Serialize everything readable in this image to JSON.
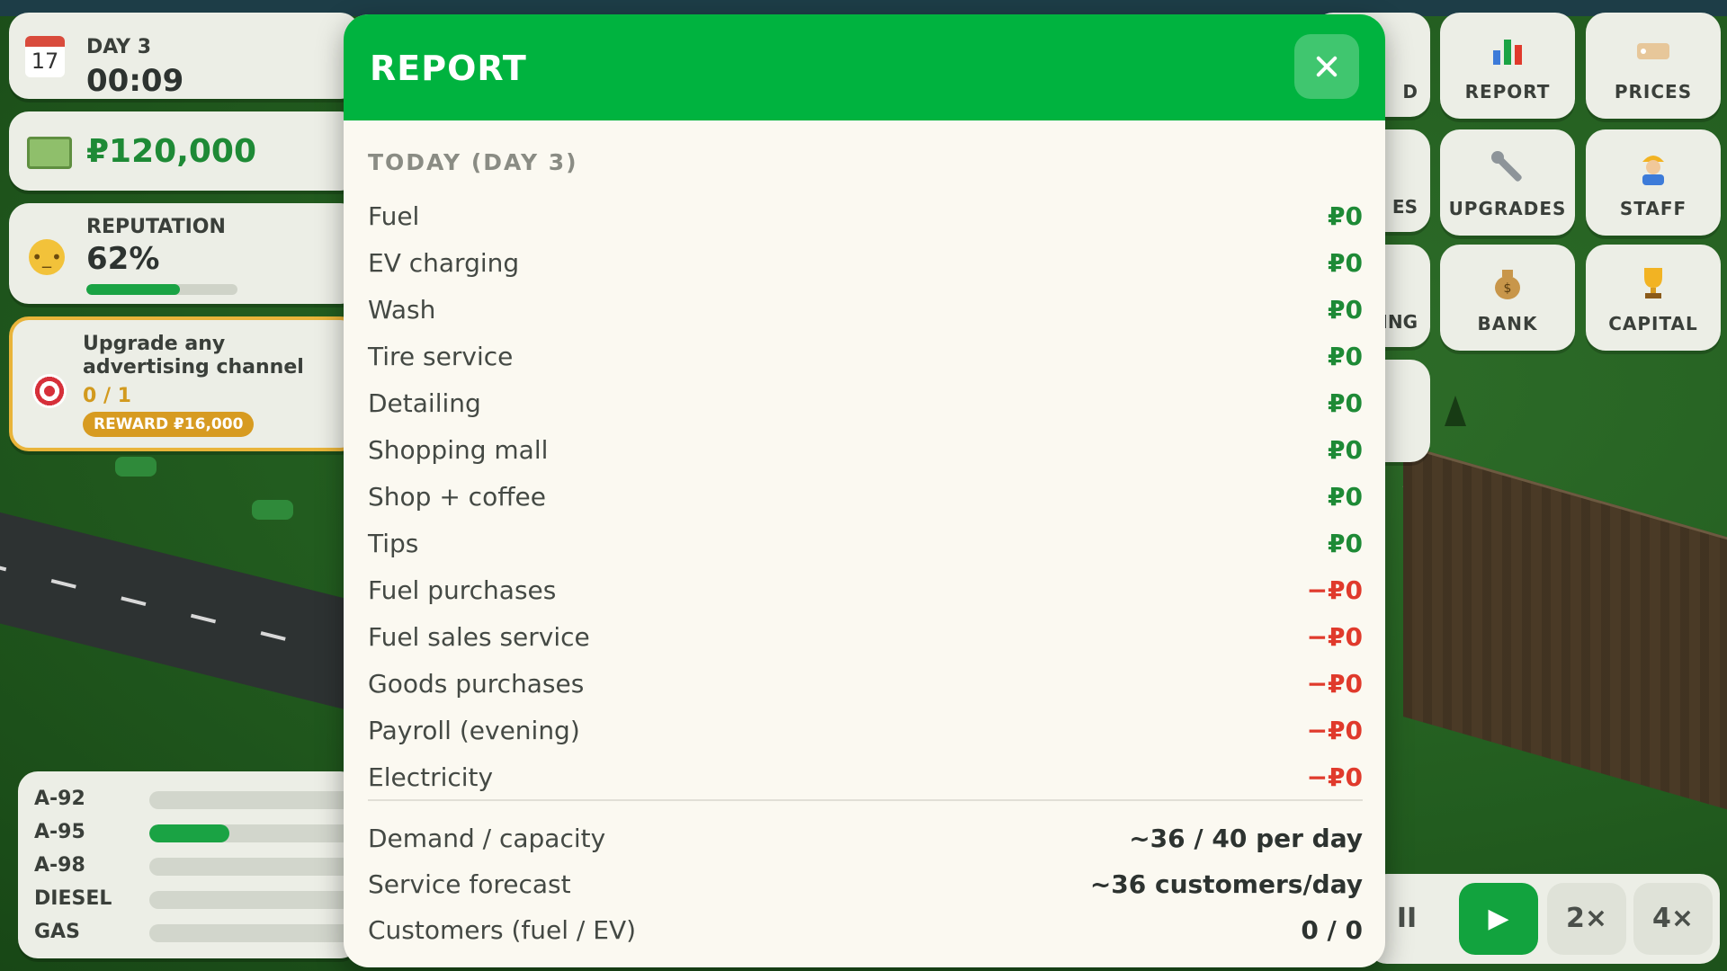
{
  "hud": {
    "day": "DAY 3",
    "calendar_day": "17",
    "clock": "00:09",
    "money": "₽120,000",
    "reputation_label": "REPUTATION",
    "reputation_value": "62%",
    "reputation_fraction": 0.62,
    "quest": {
      "text": "Upgrade any advertising channel",
      "progress": "0 / 1",
      "reward": "REWARD ₽16,000"
    },
    "fuels": [
      {
        "name": "A-92",
        "fill": 0.0
      },
      {
        "name": "A-95",
        "fill": 0.37
      },
      {
        "name": "A-98",
        "fill": 0.0
      },
      {
        "name": "DIESEL",
        "fill": 0.0
      },
      {
        "name": "GAS",
        "fill": 0.0
      }
    ]
  },
  "menu": {
    "report": "REPORT",
    "prices": "PRICES",
    "upgrades": "UPGRADES",
    "staff": "STAFF",
    "bank": "BANK",
    "capital": "CAPITAL",
    "partial_1": "D",
    "partial_2": "ES",
    "partial_3": "SING"
  },
  "speed": {
    "pause": "II",
    "play": "▶",
    "x2": "2×",
    "x4": "4×"
  },
  "modal": {
    "title": "REPORT",
    "section": "TODAY (DAY 3)",
    "rows": [
      {
        "label": "Fuel",
        "value": "₽0"
      },
      {
        "label": "EV charging",
        "value": "₽0"
      },
      {
        "label": "Wash",
        "value": "₽0"
      },
      {
        "label": "Tire service",
        "value": "₽0"
      },
      {
        "label": "Detailing",
        "value": "₽0"
      },
      {
        "label": "Shopping mall",
        "value": "₽0"
      },
      {
        "label": "Shop + coffee",
        "value": "₽0"
      },
      {
        "label": "Tips",
        "value": "₽0"
      },
      {
        "label": "Fuel purchases",
        "value": "−₽0"
      },
      {
        "label": "Fuel sales service",
        "value": "−₽0"
      },
      {
        "label": "Goods purchases",
        "value": "−₽0"
      },
      {
        "label": "Payroll (evening)",
        "value": "−₽0"
      },
      {
        "label": "Electricity",
        "value": "−₽0"
      }
    ],
    "stats": [
      {
        "label": "Demand / capacity",
        "value": "~36 / 40 per day"
      },
      {
        "label": "Service forecast",
        "value": "~36 customers/day"
      },
      {
        "label": "Customers (fuel / EV)",
        "value": "0 / 0"
      }
    ]
  }
}
